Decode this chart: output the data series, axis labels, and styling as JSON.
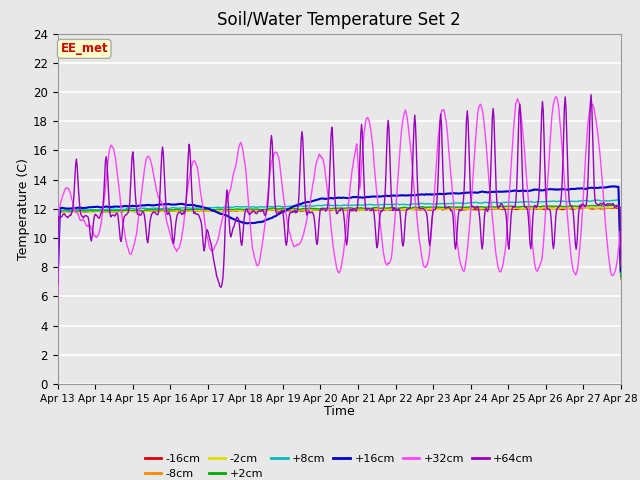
{
  "title": "Soil/Water Temperature Set 2",
  "xlabel": "Time",
  "ylabel": "Temperature (C)",
  "ylim": [
    0,
    24
  ],
  "yticks": [
    0,
    2,
    4,
    6,
    8,
    10,
    12,
    14,
    16,
    18,
    20,
    22,
    24
  ],
  "xtick_labels": [
    "Apr 13",
    "Apr 14",
    "Apr 15",
    "Apr 16",
    "Apr 17",
    "Apr 18",
    "Apr 19",
    "Apr 20",
    "Apr 21",
    "Apr 22",
    "Apr 23",
    "Apr 24",
    "Apr 25",
    "Apr 26",
    "Apr 27",
    "Apr 28"
  ],
  "series_colors": {
    "-16cm": "#dd0000",
    "-8cm": "#ff8800",
    "-2cm": "#dddd00",
    "+2cm": "#00aa00",
    "+8cm": "#00bbbb",
    "+16cm": "#0000cc",
    "+32cm": "#ff44ff",
    "+64cm": "#9900bb"
  },
  "annotation_text": "EE_met",
  "annotation_color": "#cc0000",
  "annotation_bg": "#ffffcc",
  "plot_bg": "#e8e8e8",
  "grid_color": "#ffffff",
  "title_fontsize": 12,
  "n_days": 15,
  "n_per_day": 48
}
